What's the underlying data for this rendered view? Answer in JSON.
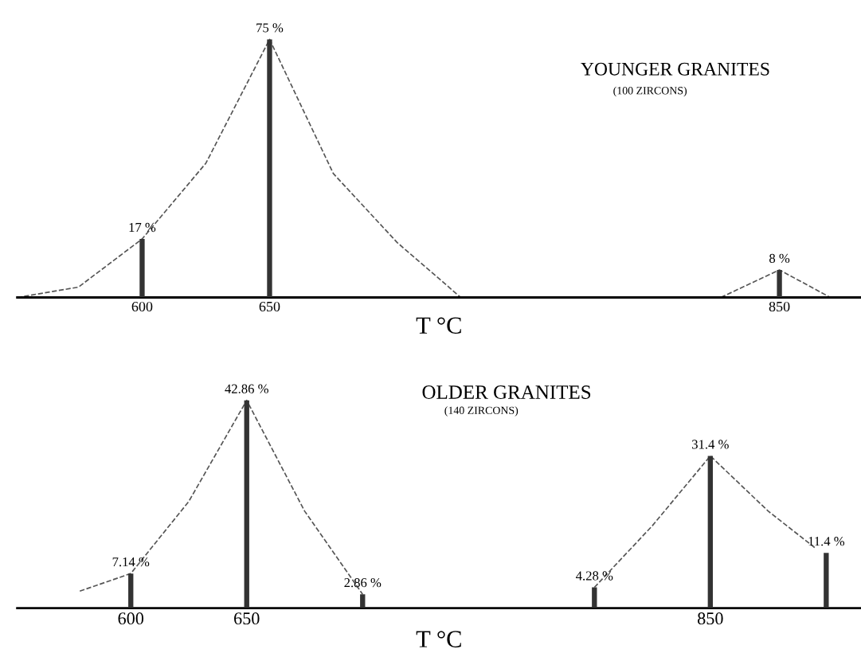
{
  "chart_data": [
    {
      "type": "bar",
      "title": "YOUNGER GRANITES",
      "subtitle": "(100 ZIRCONS)",
      "xlabel": "T °C",
      "xlim": [
        551,
        882
      ],
      "xticks": [
        600,
        650,
        850
      ],
      "tick_labels": "x",
      "grid": false,
      "legend": false,
      "series": [
        {
          "color": "#333333",
          "x": [
            600,
            650,
            850
          ],
          "values": [
            17,
            75,
            8
          ],
          "value_labels": [
            "17 %",
            "75 %",
            "8 %"
          ]
        },
        {
          "type": "line",
          "color": "#555555",
          "line_style": "dashed",
          "x": [
            551,
            575,
            600,
            625,
            650,
            675,
            700,
            725,
            800,
            827,
            850,
            870
          ],
          "values": [
            0,
            3,
            17,
            39,
            75,
            36,
            16,
            0,
            null,
            0,
            8,
            0
          ]
        }
      ]
    },
    {
      "type": "bar",
      "title": "OLDER GRANITES",
      "subtitle": "(140 ZIRCONS)",
      "xlabel": "T °C",
      "xlim": [
        551,
        915
      ],
      "xticks": [
        600,
        650,
        850
      ],
      "tick_labels": "x",
      "grid": false,
      "legend": false,
      "series": [
        {
          "color": "#333333",
          "x": [
            600,
            650,
            700,
            800,
            850,
            900
          ],
          "values": [
            7.14,
            42.86,
            2.86,
            4.28,
            31.4,
            11.4
          ],
          "value_labels": [
            "7.14 %",
            "42.86 %",
            "2.86 %",
            "4.28 %",
            "31.4 %",
            "11.4 %"
          ]
        },
        {
          "type": "line",
          "color": "#555555",
          "line_style": "dashed",
          "x": [
            578,
            600,
            625,
            650,
            675,
            700,
            750,
            800,
            825,
            850,
            875,
            895
          ],
          "values": [
            3.5,
            7.14,
            22,
            42.86,
            20,
            2.86,
            null,
            4.28,
            17,
            31.4,
            20,
            12.5
          ]
        }
      ]
    }
  ]
}
